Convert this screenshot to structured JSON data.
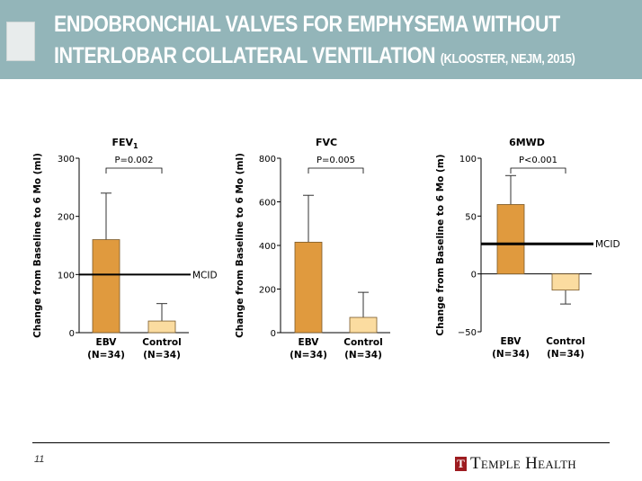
{
  "header": {
    "title_line1": "ENDOBRONCHIAL  VALVES FOR EMPHYSEMA WITHOUT",
    "title_line2": "INTERLOBAR  COLLATERAL VENTILATION ",
    "citation": "(KLOOSTER,  NEJM,  2015)",
    "background_color": "#93b5b9"
  },
  "chart_data": [
    {
      "type": "bar",
      "title": "FEV",
      "title_subscript": "1",
      "ylabel": "Change from Baseline to 6 Mo (ml)",
      "ylim": [
        0,
        300
      ],
      "yticks": [
        "0",
        "100",
        "200",
        "300"
      ],
      "ytick_values": [
        0,
        100,
        200,
        300
      ],
      "categories": [
        "EBV",
        "Control"
      ],
      "category_n": [
        "(N=34)",
        "(N=34)"
      ],
      "values": [
        160,
        20
      ],
      "error_upper": [
        240,
        50
      ],
      "reference_line": {
        "label": "MCID",
        "value": 100
      },
      "p_value": "P=0.002"
    },
    {
      "type": "bar",
      "title": "FVC",
      "title_subscript": "",
      "ylabel": "Change from Baseline to 6 Mo (ml)",
      "ylim": [
        0,
        800
      ],
      "yticks": [
        "0",
        "200",
        "400",
        "600",
        "800"
      ],
      "ytick_values": [
        0,
        200,
        400,
        600,
        800
      ],
      "categories": [
        "EBV",
        "Control"
      ],
      "category_n": [
        "(N=34)",
        "(N=34)"
      ],
      "values": [
        415,
        70
      ],
      "error_upper": [
        630,
        185
      ],
      "p_value": "P=0.005"
    },
    {
      "type": "bar",
      "title": "6MWD",
      "title_subscript": "",
      "ylabel": "Change from Baseline to 6 Mo (m)",
      "ylim": [
        -50,
        100
      ],
      "yticks": [
        "−50",
        "0",
        "50",
        "100"
      ],
      "ytick_values": [
        -50,
        0,
        50,
        100
      ],
      "categories": [
        "EBV",
        "Control"
      ],
      "category_n": [
        "(N=34)",
        "(N=34)"
      ],
      "values": [
        60,
        -14
      ],
      "error_upper": [
        85,
        -26
      ],
      "reference_line": {
        "label": "MCID",
        "value": 26
      },
      "p_value": "P<0.001"
    }
  ],
  "colors": {
    "ebv": "#e09a3e",
    "control": "#fbdca0"
  },
  "footer": {
    "page_number": "11",
    "brand": "Temple Health",
    "brand_mark": "T",
    "brand_color": "#9d1c20"
  }
}
